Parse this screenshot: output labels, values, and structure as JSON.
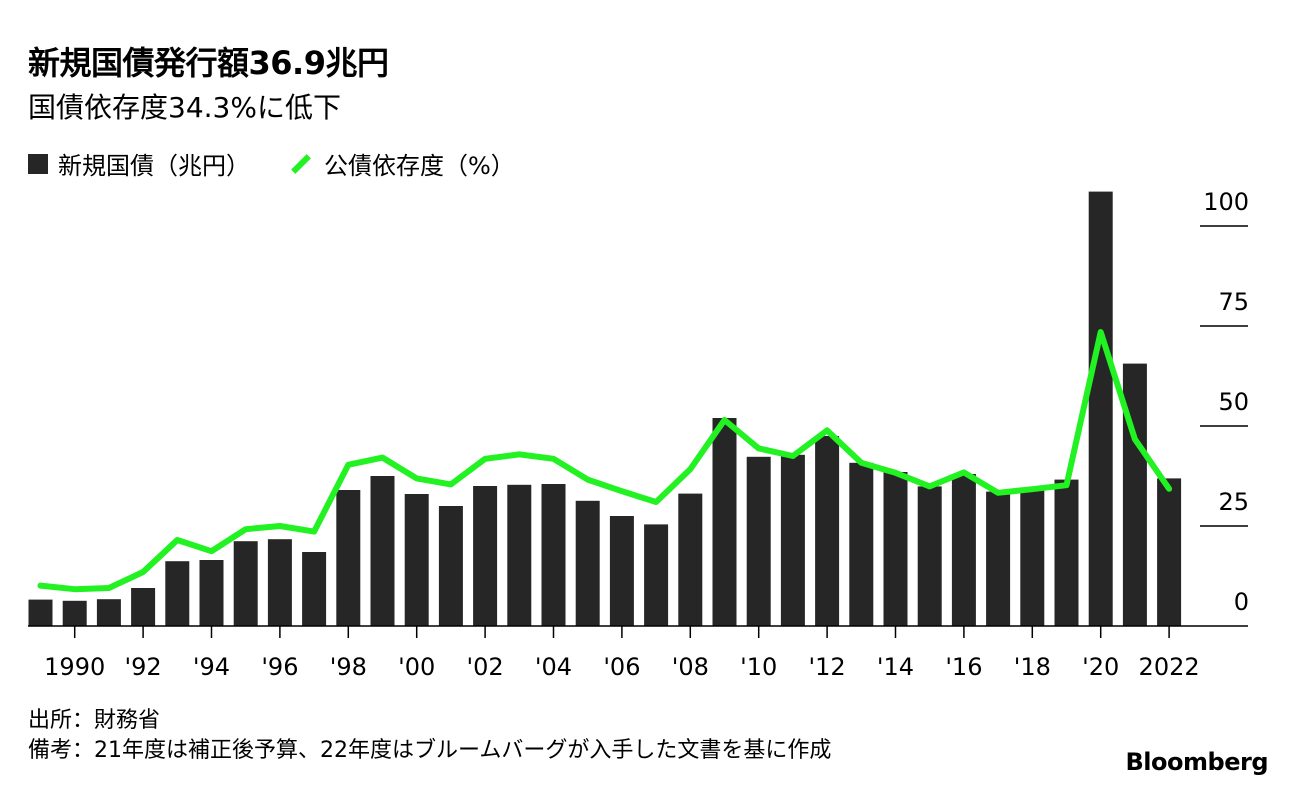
{
  "chart_data": {
    "type": "bar+line",
    "title": "新規国債発行額36.9兆円",
    "subtitle": "国債依存度34.3%に低下",
    "legend": {
      "bar_label": "新規国債（兆円）",
      "line_label": "公債依存度（%）"
    },
    "categories": [
      "1989",
      "1990",
      "1991",
      "1992",
      "1993",
      "1994",
      "1995",
      "1996",
      "1997",
      "1998",
      "1999",
      "2000",
      "2001",
      "2002",
      "2003",
      "2004",
      "2005",
      "2006",
      "2007",
      "2008",
      "2009",
      "2010",
      "2011",
      "2012",
      "2013",
      "2014",
      "2015",
      "2016",
      "2017",
      "2018",
      "2019",
      "2020",
      "2021",
      "2022"
    ],
    "series": [
      {
        "name": "新規国債（兆円）",
        "type": "bar",
        "color": "#262626",
        "values": [
          6.6,
          6.3,
          6.7,
          9.5,
          16.2,
          16.5,
          21.2,
          21.7,
          18.5,
          34.0,
          37.5,
          33.0,
          30.0,
          35.0,
          35.3,
          35.5,
          31.3,
          27.5,
          25.4,
          33.1,
          52.0,
          42.3,
          42.8,
          47.5,
          40.8,
          38.5,
          34.9,
          38.0,
          33.6,
          34.4,
          36.6,
          108.6,
          65.6,
          36.9
        ]
      },
      {
        "name": "公債依存度（%）",
        "type": "line",
        "color": "#22f122",
        "values": [
          10.1,
          9.2,
          9.5,
          13.5,
          21.5,
          18.7,
          24.2,
          25.0,
          23.6,
          40.3,
          42.1,
          36.9,
          35.4,
          41.8,
          42.9,
          41.8,
          36.6,
          33.7,
          31.0,
          39.2,
          51.5,
          44.4,
          42.5,
          48.9,
          40.8,
          38.3,
          34.9,
          38.4,
          33.3,
          34.2,
          35.2,
          73.5,
          46.7,
          34.3
        ]
      }
    ],
    "x_tick_labels": [
      "1990",
      "'92",
      "'94",
      "'96",
      "'98",
      "'00",
      "'02",
      "'04",
      "'06",
      "'08",
      "'10",
      "'12",
      "'14",
      "'16",
      "'18",
      "'20",
      "2022"
    ],
    "y_tick_labels": [
      "0",
      "25",
      "50",
      "75",
      "100"
    ],
    "ylim": [
      0,
      108.6
    ],
    "grid": false
  },
  "notes": {
    "source": "出所：財務省",
    "remarks": "備考：21年度は補正後予算、22年度はブルームバーグが入手した文書を基に作成"
  },
  "brand": "Bloomberg"
}
